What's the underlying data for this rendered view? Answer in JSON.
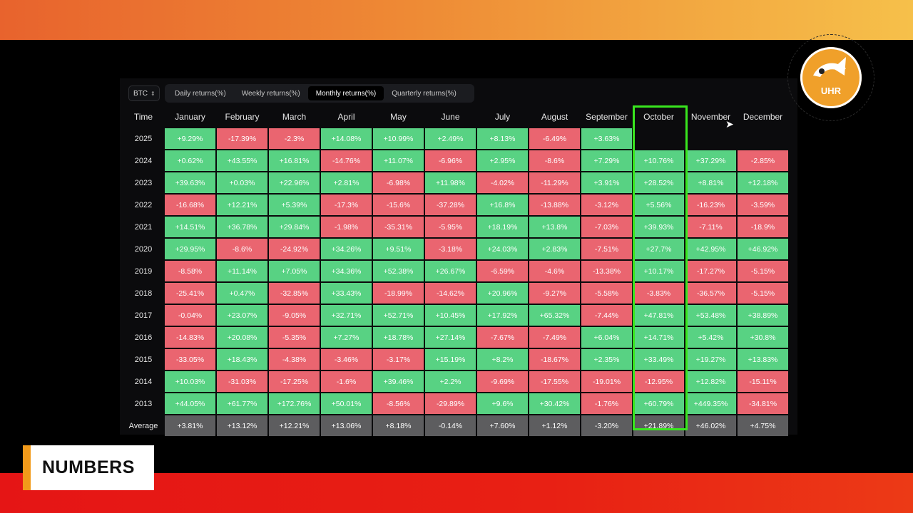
{
  "asset": "BTC",
  "tabs": [
    {
      "label": "Daily returns(%)"
    },
    {
      "label": "Weekly returns(%)"
    },
    {
      "label": "Monthly returns(%)"
    },
    {
      "label": "Quarterly returns(%)"
    }
  ],
  "active_tab": "Monthly returns(%)",
  "table": {
    "time_header": "Time",
    "months": [
      "January",
      "February",
      "March",
      "April",
      "May",
      "June",
      "July",
      "August",
      "September",
      "October",
      "November",
      "December"
    ],
    "rows": [
      {
        "year": "2025",
        "values": [
          "+9.29%",
          "-17.39%",
          "-2.3%",
          "+14.08%",
          "+10.99%",
          "+2.49%",
          "+8.13%",
          "-6.49%",
          "+3.63%",
          "",
          "",
          ""
        ]
      },
      {
        "year": "2024",
        "values": [
          "+0.62%",
          "+43.55%",
          "+16.81%",
          "-14.76%",
          "+11.07%",
          "-6.96%",
          "+2.95%",
          "-8.6%",
          "+7.29%",
          "+10.76%",
          "+37.29%",
          "-2.85%"
        ]
      },
      {
        "year": "2023",
        "values": [
          "+39.63%",
          "+0.03%",
          "+22.96%",
          "+2.81%",
          "-6.98%",
          "+11.98%",
          "-4.02%",
          "-11.29%",
          "+3.91%",
          "+28.52%",
          "+8.81%",
          "+12.18%"
        ]
      },
      {
        "year": "2022",
        "values": [
          "-16.68%",
          "+12.21%",
          "+5.39%",
          "-17.3%",
          "-15.6%",
          "-37.28%",
          "+16.8%",
          "-13.88%",
          "-3.12%",
          "+5.56%",
          "-16.23%",
          "-3.59%"
        ]
      },
      {
        "year": "2021",
        "values": [
          "+14.51%",
          "+36.78%",
          "+29.84%",
          "-1.98%",
          "-35.31%",
          "-5.95%",
          "+18.19%",
          "+13.8%",
          "-7.03%",
          "+39.93%",
          "-7.11%",
          "-18.9%"
        ]
      },
      {
        "year": "2020",
        "values": [
          "+29.95%",
          "-8.6%",
          "-24.92%",
          "+34.26%",
          "+9.51%",
          "-3.18%",
          "+24.03%",
          "+2.83%",
          "-7.51%",
          "+27.7%",
          "+42.95%",
          "+46.92%"
        ]
      },
      {
        "year": "2019",
        "values": [
          "-8.58%",
          "+11.14%",
          "+7.05%",
          "+34.36%",
          "+52.38%",
          "+26.67%",
          "-6.59%",
          "-4.6%",
          "-13.38%",
          "+10.17%",
          "-17.27%",
          "-5.15%"
        ]
      },
      {
        "year": "2018",
        "values": [
          "-25.41%",
          "+0.47%",
          "-32.85%",
          "+33.43%",
          "-18.99%",
          "-14.62%",
          "+20.96%",
          "-9.27%",
          "-5.58%",
          "-3.83%",
          "-36.57%",
          "-5.15%"
        ]
      },
      {
        "year": "2017",
        "values": [
          "-0.04%",
          "+23.07%",
          "-9.05%",
          "+32.71%",
          "+52.71%",
          "+10.45%",
          "+17.92%",
          "+65.32%",
          "-7.44%",
          "+47.81%",
          "+53.48%",
          "+38.89%"
        ]
      },
      {
        "year": "2016",
        "values": [
          "-14.83%",
          "+20.08%",
          "-5.35%",
          "+7.27%",
          "+18.78%",
          "+27.14%",
          "-7.67%",
          "-7.49%",
          "+6.04%",
          "+14.71%",
          "+5.42%",
          "+30.8%"
        ]
      },
      {
        "year": "2015",
        "values": [
          "-33.05%",
          "+18.43%",
          "-4.38%",
          "-3.46%",
          "-3.17%",
          "+15.19%",
          "+8.2%",
          "-18.67%",
          "+2.35%",
          "+33.49%",
          "+19.27%",
          "+13.83%"
        ]
      },
      {
        "year": "2014",
        "values": [
          "+10.03%",
          "-31.03%",
          "-17.25%",
          "-1.6%",
          "+39.46%",
          "+2.2%",
          "-9.69%",
          "-17.55%",
          "-19.01%",
          "-12.95%",
          "+12.82%",
          "-15.11%"
        ]
      },
      {
        "year": "2013",
        "values": [
          "+44.05%",
          "+61.77%",
          "+172.76%",
          "+50.01%",
          "-8.56%",
          "-29.89%",
          "+9.6%",
          "+30.42%",
          "-1.76%",
          "+60.79%",
          "+449.35%",
          "-34.81%"
        ]
      }
    ],
    "average": {
      "label": "Average",
      "values": [
        "+3.81%",
        "+13.12%",
        "+12.21%",
        "+13.06%",
        "+8.18%",
        "-0.14%",
        "+7.60%",
        "+1.12%",
        "-3.20%",
        "+21.89%",
        "+46.02%",
        "+4.75%"
      ]
    }
  },
  "highlighted_month": "October",
  "logo": {
    "text": "UHR"
  },
  "badge": {
    "text": "NUMBERS"
  },
  "colors": {
    "positive": "#58d283",
    "negative": "#ea6570",
    "average": "#5d5d5f",
    "highlight": "#39e61e",
    "badge_accent": "#f29a1a"
  }
}
